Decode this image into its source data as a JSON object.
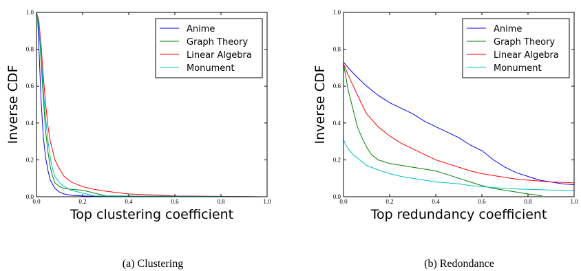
{
  "chart_data": [
    {
      "type": "line",
      "xlabel": "Top clustering coefficient",
      "ylabel": "Inverse CDF",
      "xlim": [
        0,
        1.0
      ],
      "ylim": [
        0,
        1.0
      ],
      "xticks": [
        "0.0",
        "0.2",
        "0.4",
        "0.6",
        "0.8",
        "1.0"
      ],
      "yticks": [
        "0.0",
        "0.2",
        "0.4",
        "0.6",
        "0.8",
        "1.0"
      ],
      "grid": false,
      "legend_position": "top-right",
      "caption": "(a) Clustering",
      "series": [
        {
          "name": "Anime",
          "color": "#0000ff",
          "x": [
            0,
            0.005,
            0.01,
            0.02,
            0.03,
            0.04,
            0.05,
            0.06,
            0.08,
            0.1,
            0.12,
            0.15,
            0.2,
            0.3,
            1.0
          ],
          "y": [
            1.0,
            0.97,
            0.82,
            0.52,
            0.32,
            0.21,
            0.14,
            0.09,
            0.045,
            0.025,
            0.015,
            0.008,
            0.004,
            0.001,
            0
          ]
        },
        {
          "name": "Graph Theory",
          "color": "#008000",
          "x": [
            0,
            0.01,
            0.02,
            0.03,
            0.04,
            0.05,
            0.06,
            0.07,
            0.08,
            0.1,
            0.12,
            0.15,
            0.2,
            0.25,
            0.3,
            1.0
          ],
          "y": [
            1.0,
            0.93,
            0.74,
            0.53,
            0.35,
            0.24,
            0.16,
            0.11,
            0.075,
            0.055,
            0.045,
            0.04,
            0.035,
            0.02,
            0.005,
            0
          ]
        },
        {
          "name": "Linear Algebra",
          "color": "#ff0000",
          "x": [
            0,
            0.01,
            0.02,
            0.03,
            0.04,
            0.05,
            0.06,
            0.08,
            0.1,
            0.12,
            0.15,
            0.2,
            0.25,
            0.3,
            0.4,
            0.5,
            0.6,
            1.0
          ],
          "y": [
            1.0,
            0.96,
            0.82,
            0.65,
            0.5,
            0.38,
            0.3,
            0.2,
            0.15,
            0.11,
            0.08,
            0.055,
            0.04,
            0.03,
            0.015,
            0.01,
            0.004,
            0
          ]
        },
        {
          "name": "Monument",
          "color": "#00bfbf",
          "x": [
            0,
            0.01,
            0.02,
            0.03,
            0.04,
            0.05,
            0.06,
            0.07,
            0.08,
            0.1,
            0.12,
            0.15,
            0.2,
            0.25,
            1.0
          ],
          "y": [
            1.0,
            0.95,
            0.78,
            0.58,
            0.42,
            0.3,
            0.21,
            0.15,
            0.11,
            0.075,
            0.055,
            0.035,
            0.02,
            0.005,
            0
          ]
        }
      ]
    },
    {
      "type": "line",
      "xlabel": "Top redundancy coefficient",
      "ylabel": "Inverse CDF",
      "xlim": [
        0,
        1.0
      ],
      "ylim": [
        0,
        1.0
      ],
      "xticks": [
        "0.0",
        "0.2",
        "0.4",
        "0.6",
        "0.8",
        "1.0"
      ],
      "yticks": [
        "0.0",
        "0.2",
        "0.4",
        "0.6",
        "0.8",
        "1.0"
      ],
      "grid": false,
      "legend_position": "top-right",
      "caption": "(b) Redondance",
      "series": [
        {
          "name": "Anime",
          "color": "#0000ff",
          "x": [
            0,
            0.02,
            0.05,
            0.1,
            0.15,
            0.2,
            0.25,
            0.3,
            0.35,
            0.4,
            0.45,
            0.5,
            0.55,
            0.6,
            0.65,
            0.7,
            0.75,
            0.8,
            0.85,
            0.9,
            0.95,
            1.0
          ],
          "y": [
            0.73,
            0.7,
            0.66,
            0.6,
            0.55,
            0.51,
            0.48,
            0.45,
            0.41,
            0.38,
            0.35,
            0.32,
            0.28,
            0.25,
            0.2,
            0.16,
            0.13,
            0.11,
            0.09,
            0.08,
            0.07,
            0.065
          ]
        },
        {
          "name": "Graph Theory",
          "color": "#008000",
          "x": [
            0,
            0.01,
            0.02,
            0.04,
            0.06,
            0.08,
            0.1,
            0.12,
            0.15,
            0.2,
            0.25,
            0.3,
            0.35,
            0.4,
            0.45,
            0.5,
            0.55,
            0.6,
            0.65,
            0.7,
            0.75,
            0.8,
            0.86
          ],
          "y": [
            0.72,
            0.65,
            0.58,
            0.48,
            0.38,
            0.32,
            0.27,
            0.23,
            0.2,
            0.18,
            0.17,
            0.16,
            0.15,
            0.14,
            0.12,
            0.1,
            0.08,
            0.06,
            0.045,
            0.035,
            0.025,
            0.015,
            0.005
          ]
        },
        {
          "name": "Linear Algebra",
          "color": "#ff0000",
          "x": [
            0,
            0.02,
            0.05,
            0.08,
            0.1,
            0.15,
            0.2,
            0.25,
            0.3,
            0.35,
            0.4,
            0.45,
            0.5,
            0.55,
            0.6,
            0.65,
            0.7,
            0.75,
            0.8,
            0.85,
            0.9,
            0.95,
            1.0
          ],
          "y": [
            0.72,
            0.66,
            0.58,
            0.5,
            0.45,
            0.38,
            0.33,
            0.29,
            0.26,
            0.23,
            0.2,
            0.18,
            0.16,
            0.14,
            0.125,
            0.115,
            0.105,
            0.095,
            0.09,
            0.085,
            0.08,
            0.078,
            0.075
          ]
        },
        {
          "name": "Monument",
          "color": "#00bfbf",
          "x": [
            0,
            0.01,
            0.02,
            0.04,
            0.06,
            0.08,
            0.1,
            0.15,
            0.2,
            0.25,
            0.3,
            0.35,
            0.4,
            0.45,
            0.5,
            0.55,
            0.6,
            0.65,
            0.7,
            0.75,
            0.8,
            0.85,
            0.9,
            0.95,
            1.0
          ],
          "y": [
            0.31,
            0.28,
            0.26,
            0.23,
            0.21,
            0.19,
            0.17,
            0.145,
            0.125,
            0.11,
            0.1,
            0.09,
            0.08,
            0.075,
            0.07,
            0.06,
            0.055,
            0.05,
            0.045,
            0.042,
            0.04,
            0.038,
            0.036,
            0.035,
            0.035
          ]
        }
      ]
    }
  ]
}
